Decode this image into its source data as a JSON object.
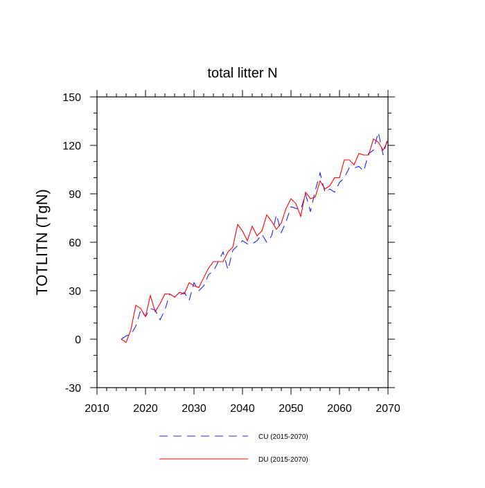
{
  "chart_data": {
    "type": "line",
    "title": "total litter N",
    "xlabel": "",
    "ylabel": "TOTLITN  (TgN)",
    "xlim": [
      2010,
      2070
    ],
    "ylim": [
      -30,
      150
    ],
    "xticks": [
      2010,
      2020,
      2030,
      2040,
      2050,
      2060,
      2070
    ],
    "yticks": [
      -30,
      0,
      30,
      60,
      90,
      120,
      150
    ],
    "x": [
      2015,
      2016,
      2017,
      2018,
      2019,
      2020,
      2021,
      2022,
      2023,
      2024,
      2025,
      2026,
      2027,
      2028,
      2029,
      2030,
      2031,
      2032,
      2033,
      2034,
      2035,
      2036,
      2037,
      2038,
      2039,
      2040,
      2041,
      2042,
      2043,
      2044,
      2045,
      2046,
      2047,
      2048,
      2049,
      2050,
      2051,
      2052,
      2053,
      2054,
      2055,
      2056,
      2057,
      2058,
      2059,
      2060,
      2061,
      2062,
      2063,
      2064,
      2065,
      2066,
      2067,
      2068,
      2069,
      2070
    ],
    "series": [
      {
        "name": "CU (2015-2070)",
        "color": "#1f1fff",
        "style": "dashed",
        "values": [
          0,
          2,
          3,
          8,
          18,
          14,
          19,
          18,
          12,
          18,
          28,
          26,
          27,
          29,
          24,
          35,
          30,
          33,
          40,
          42,
          48,
          54,
          43,
          55,
          58,
          61,
          59,
          59,
          61,
          65,
          60,
          64,
          77,
          66,
          73,
          82,
          81,
          80,
          90,
          79,
          92,
          103,
          91,
          93,
          91,
          97,
          100,
          106,
          106,
          107,
          104,
          115,
          117,
          128,
          114,
          125
        ]
      },
      {
        "name": "DU (2015-2070)",
        "color": "#ff0000",
        "style": "solid",
        "values": [
          0,
          -2,
          6,
          21,
          19,
          14,
          27,
          17,
          22,
          28,
          28,
          26,
          29,
          28,
          35,
          33,
          32,
          38,
          44,
          48,
          48,
          48,
          54,
          57,
          71,
          67,
          61,
          70,
          64,
          67,
          77,
          73,
          68,
          72,
          81,
          87,
          84,
          76,
          91,
          87,
          88,
          98,
          93,
          95,
          100,
          100,
          111,
          111,
          108,
          115,
          114,
          114,
          124,
          122,
          117,
          123
        ]
      }
    ],
    "legend_position": "bottom"
  }
}
